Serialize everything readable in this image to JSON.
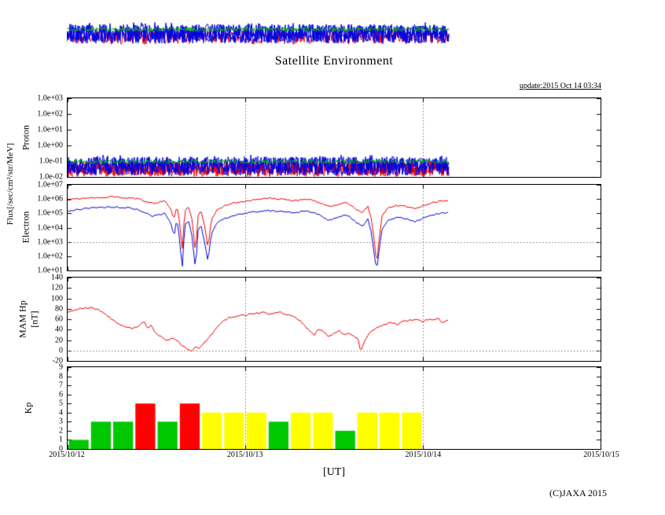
{
  "title": "Satellite Environment",
  "update_label": "update:2015 Oct 14 03:34",
  "copyright": "(C)JAXA 2015",
  "xaxis": {
    "label": "[UT]",
    "tick_labels": [
      "2015/10/12",
      "2015/10/13",
      "2015/10/14",
      "2015/10/15"
    ],
    "span_days": 3
  },
  "axis_titles": {
    "flux": "Flux[/sec/cm²/str/MeV]",
    "proton": "Proton",
    "electron": "Electron",
    "mam_line1": "MAM Hp",
    "mam_line2": "[nT]",
    "kp": "Kp"
  },
  "chart_data": [
    {
      "id": "proton-flux",
      "type": "line",
      "yscale": "log",
      "ylim_exp": [
        -2,
        3
      ],
      "ytick_labels": [
        "1.0e+03",
        "1.0e+02",
        "1.0e+01",
        "1.0e+00",
        "1.0e-01",
        "1.0e-02"
      ],
      "data_end_day": 2.147,
      "series": [
        {
          "name": "proton-red",
          "color": "#ee0000",
          "log10_band": [
            -1.97,
            -1.02
          ]
        },
        {
          "name": "proton-blue",
          "color": "#0000dd",
          "log10_band": [
            -1.9,
            -0.72
          ]
        },
        {
          "name": "proton-green",
          "color": "#00b400",
          "log10_center": -1.03,
          "log10_halfwidth": 0.13
        }
      ]
    },
    {
      "id": "electron-flux",
      "type": "line",
      "yscale": "log",
      "ylim_exp": [
        1,
        7
      ],
      "ytick_labels": [
        "1.0e+07",
        "1.0e+06",
        "1.0e+05",
        "1.0e+04",
        "1.0e+03",
        "1.0e+02",
        "1.0e+01"
      ],
      "data_end_day": 2.147,
      "hline_exp": 3,
      "series": [
        {
          "name": "electron-red",
          "color": "#ee0000",
          "points_log10": [
            [
              0,
              5.95
            ],
            [
              0.08,
              6.05
            ],
            [
              0.15,
              6.1
            ],
            [
              0.25,
              6.15
            ],
            [
              0.33,
              6.1
            ],
            [
              0.4,
              6.0
            ],
            [
              0.48,
              5.7
            ],
            [
              0.55,
              5.9
            ],
            [
              0.58,
              5.3
            ],
            [
              0.6,
              4.6
            ],
            [
              0.615,
              5.6
            ],
            [
              0.63,
              4.4
            ],
            [
              0.645,
              2.4
            ],
            [
              0.66,
              5.2
            ],
            [
              0.68,
              5.5
            ],
            [
              0.7,
              4.6
            ],
            [
              0.72,
              2.2
            ],
            [
              0.735,
              4.9
            ],
            [
              0.75,
              5.2
            ],
            [
              0.77,
              4.2
            ],
            [
              0.79,
              2.6
            ],
            [
              0.81,
              4.6
            ],
            [
              0.84,
              5.2
            ],
            [
              0.88,
              5.5
            ],
            [
              0.93,
              5.7
            ],
            [
              1.0,
              5.85
            ],
            [
              1.08,
              6.0
            ],
            [
              1.15,
              6.05
            ],
            [
              1.22,
              5.95
            ],
            [
              1.28,
              5.9
            ],
            [
              1.35,
              6.0
            ],
            [
              1.42,
              5.75
            ],
            [
              1.47,
              5.45
            ],
            [
              1.52,
              5.6
            ],
            [
              1.57,
              5.75
            ],
            [
              1.62,
              5.3
            ],
            [
              1.66,
              5.05
            ],
            [
              1.69,
              5.5
            ],
            [
              1.71,
              4.6
            ],
            [
              1.725,
              3.2
            ],
            [
              1.74,
              1.4
            ],
            [
              1.755,
              3.4
            ],
            [
              1.77,
              4.8
            ],
            [
              1.8,
              5.35
            ],
            [
              1.85,
              5.55
            ],
            [
              1.9,
              5.5
            ],
            [
              1.95,
              5.3
            ],
            [
              2.0,
              5.55
            ],
            [
              2.06,
              5.75
            ],
            [
              2.147,
              5.95
            ]
          ]
        },
        {
          "name": "electron-blue",
          "color": "#0000cc",
          "points_log10": [
            [
              0,
              5.15
            ],
            [
              0.08,
              5.3
            ],
            [
              0.15,
              5.4
            ],
            [
              0.25,
              5.45
            ],
            [
              0.33,
              5.4
            ],
            [
              0.4,
              5.25
            ],
            [
              0.48,
              4.8
            ],
            [
              0.55,
              5.0
            ],
            [
              0.58,
              4.3
            ],
            [
              0.6,
              3.4
            ],
            [
              0.615,
              4.7
            ],
            [
              0.63,
              3.2
            ],
            [
              0.645,
              1.15
            ],
            [
              0.66,
              4.2
            ],
            [
              0.68,
              4.5
            ],
            [
              0.7,
              3.4
            ],
            [
              0.72,
              1.1
            ],
            [
              0.735,
              3.9
            ],
            [
              0.75,
              4.2
            ],
            [
              0.77,
              3.0
            ],
            [
              0.79,
              1.6
            ],
            [
              0.81,
              3.6
            ],
            [
              0.84,
              4.3
            ],
            [
              0.88,
              4.6
            ],
            [
              0.93,
              4.85
            ],
            [
              1.0,
              5.0
            ],
            [
              1.08,
              5.15
            ],
            [
              1.15,
              5.2
            ],
            [
              1.22,
              5.1
            ],
            [
              1.28,
              5.05
            ],
            [
              1.35,
              5.15
            ],
            [
              1.42,
              4.9
            ],
            [
              1.47,
              4.5
            ],
            [
              1.52,
              4.7
            ],
            [
              1.57,
              4.9
            ],
            [
              1.62,
              4.4
            ],
            [
              1.66,
              4.1
            ],
            [
              1.69,
              4.6
            ],
            [
              1.71,
              3.7
            ],
            [
              1.725,
              2.2
            ],
            [
              1.74,
              1.05
            ],
            [
              1.755,
              2.6
            ],
            [
              1.77,
              3.9
            ],
            [
              1.8,
              4.5
            ],
            [
              1.85,
              4.7
            ],
            [
              1.9,
              4.65
            ],
            [
              1.95,
              4.4
            ],
            [
              2.0,
              4.65
            ],
            [
              2.06,
              4.9
            ],
            [
              2.147,
              5.1
            ]
          ]
        }
      ]
    },
    {
      "id": "mam-hp",
      "type": "line",
      "yscale": "linear",
      "ylim": [
        -20,
        140
      ],
      "ytick_labels": [
        "140",
        "120",
        "100",
        "80",
        "60",
        "40",
        "20",
        "0",
        "-20"
      ],
      "data_end_day": 2.147,
      "hline": 0,
      "series": [
        {
          "name": "mam-red",
          "color": "#ee0000",
          "points": [
            [
              0,
              74
            ],
            [
              0.04,
              78
            ],
            [
              0.08,
              81
            ],
            [
              0.13,
              82
            ],
            [
              0.17,
              79
            ],
            [
              0.2,
              72
            ],
            [
              0.24,
              62
            ],
            [
              0.28,
              52
            ],
            [
              0.32,
              46
            ],
            [
              0.36,
              42
            ],
            [
              0.4,
              47
            ],
            [
              0.43,
              55
            ],
            [
              0.45,
              42
            ],
            [
              0.47,
              48
            ],
            [
              0.5,
              32
            ],
            [
              0.53,
              25
            ],
            [
              0.56,
              20
            ],
            [
              0.59,
              24
            ],
            [
              0.62,
              18
            ],
            [
              0.65,
              8
            ],
            [
              0.68,
              2
            ],
            [
              0.7,
              -2
            ],
            [
              0.72,
              8
            ],
            [
              0.74,
              4
            ],
            [
              0.76,
              12
            ],
            [
              0.79,
              22
            ],
            [
              0.83,
              40
            ],
            [
              0.87,
              55
            ],
            [
              0.91,
              63
            ],
            [
              0.95,
              66
            ],
            [
              1.0,
              68
            ],
            [
              1.05,
              71
            ],
            [
              1.1,
              73
            ],
            [
              1.14,
              70
            ],
            [
              1.18,
              74
            ],
            [
              1.22,
              71
            ],
            [
              1.26,
              67
            ],
            [
              1.3,
              60
            ],
            [
              1.33,
              48
            ],
            [
              1.36,
              38
            ],
            [
              1.39,
              30
            ],
            [
              1.41,
              42
            ],
            [
              1.44,
              36
            ],
            [
              1.47,
              26
            ],
            [
              1.5,
              32
            ],
            [
              1.53,
              38
            ],
            [
              1.56,
              30
            ],
            [
              1.59,
              33
            ],
            [
              1.61,
              27
            ],
            [
              1.635,
              24
            ],
            [
              1.65,
              -4
            ],
            [
              1.67,
              18
            ],
            [
              1.7,
              34
            ],
            [
              1.74,
              44
            ],
            [
              1.78,
              50
            ],
            [
              1.82,
              54
            ],
            [
              1.86,
              50
            ],
            [
              1.89,
              56
            ],
            [
              1.93,
              58
            ],
            [
              1.97,
              60
            ],
            [
              2.0,
              55
            ],
            [
              2.03,
              60
            ],
            [
              2.06,
              58
            ],
            [
              2.09,
              62
            ],
            [
              2.11,
              52
            ],
            [
              2.13,
              58
            ],
            [
              2.147,
              56
            ]
          ]
        }
      ]
    },
    {
      "id": "kp-index",
      "type": "bar",
      "ylim": [
        0,
        9
      ],
      "ytick_labels": [
        "9",
        "8",
        "7",
        "6",
        "5",
        "4",
        "3",
        "2",
        "1",
        "0"
      ],
      "interval_hours": 3,
      "values": [
        1,
        3,
        3,
        5,
        3,
        5,
        4,
        4,
        4,
        3,
        4,
        4,
        2,
        4,
        4,
        4
      ],
      "colors": {
        "low": "#00c800",
        "moderate": "#ffff00",
        "high": "#ff0000"
      },
      "thresholds": {
        "moderate": 4,
        "high": 5
      }
    },
    {
      "id": "top-cropped-flux-band",
      "type": "line",
      "note": "bottom sliver of an identical flux panel cropped at the top edge of the image",
      "data_end_day": 2.147
    }
  ]
}
